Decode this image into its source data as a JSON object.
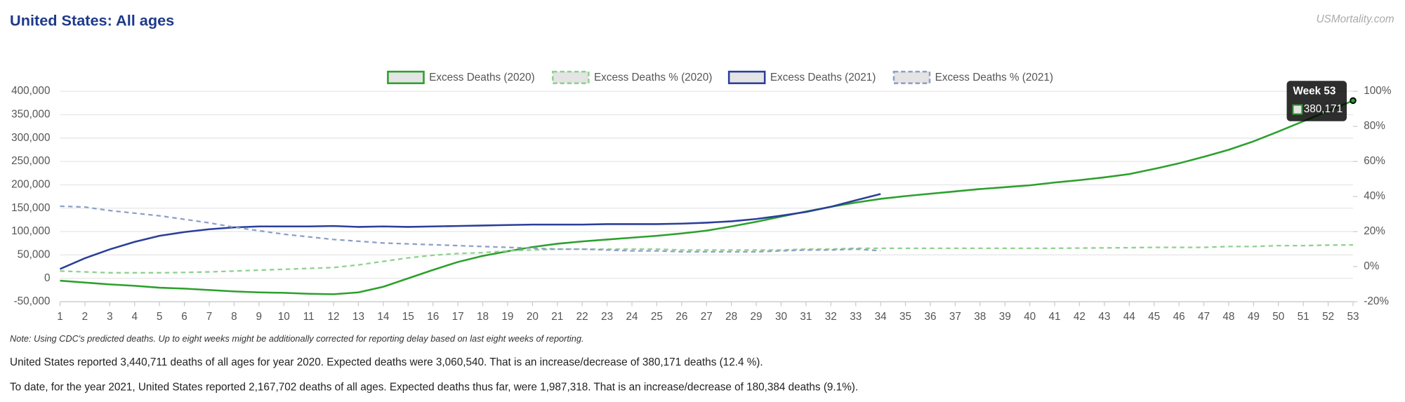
{
  "header": {
    "title": "United States: All ages",
    "brand": "USMortality.com"
  },
  "chart_data": {
    "type": "line",
    "categories": [
      "1",
      "2",
      "3",
      "4",
      "5",
      "6",
      "7",
      "8",
      "9",
      "10",
      "11",
      "12",
      "13",
      "14",
      "15",
      "16",
      "17",
      "18",
      "19",
      "20",
      "21",
      "22",
      "23",
      "24",
      "25",
      "26",
      "27",
      "28",
      "29",
      "30",
      "31",
      "32",
      "33",
      "34",
      "35",
      "36",
      "37",
      "38",
      "39",
      "40",
      "41",
      "42",
      "43",
      "44",
      "45",
      "46",
      "47",
      "48",
      "49",
      "50",
      "51",
      "52",
      "53"
    ],
    "series": [
      {
        "name": "Excess Deaths (2020)",
        "color": "#2ca02c",
        "line_style": "solid",
        "axis": "y",
        "values": [
          -5000,
          -9000,
          -13000,
          -16000,
          -20000,
          -22000,
          -25000,
          -28000,
          -30000,
          -31000,
          -33000,
          -34000,
          -30000,
          -18000,
          0,
          18000,
          35000,
          48000,
          58000,
          67000,
          74000,
          79000,
          83000,
          87000,
          91000,
          96000,
          102000,
          111000,
          121000,
          132000,
          143000,
          153000,
          162000,
          170000,
          176000,
          181000,
          186000,
          191000,
          195000,
          199000,
          205000,
          210000,
          216000,
          223000,
          234000,
          246000,
          260000,
          275000,
          293000,
          314000,
          336000,
          358000,
          380171
        ]
      },
      {
        "name": "Excess Deaths % (2020)",
        "color": "#8fd18f",
        "line_style": "dashed",
        "axis": "y2",
        "values": [
          -2.5,
          -3,
          -3.5,
          -3.5,
          -3.5,
          -3.3,
          -3,
          -2.5,
          -2,
          -1.5,
          -1,
          -0.5,
          1,
          3,
          5,
          6.5,
          7.5,
          8,
          9,
          9.5,
          10,
          10,
          10,
          10,
          10,
          9.5,
          9.5,
          9.5,
          9.5,
          9.5,
          10,
          10,
          10.5,
          10.5,
          10.5,
          10.5,
          10.5,
          10.5,
          10.5,
          10.5,
          10.5,
          10.6,
          10.7,
          10.8,
          11,
          11,
          11,
          11.5,
          11.5,
          12,
          12,
          12.3,
          12.4
        ]
      },
      {
        "name": "Excess Deaths (2021)",
        "color": "#2b3f99",
        "line_style": "solid",
        "axis": "y",
        "values": [
          20000,
          43000,
          62000,
          78000,
          91000,
          99000,
          105000,
          109000,
          111000,
          111000,
          111000,
          112000,
          110000,
          111000,
          110000,
          111000,
          112000,
          113000,
          114000,
          115000,
          115000,
          115000,
          116000,
          116000,
          116000,
          117000,
          119000,
          122000,
          127000,
          134000,
          142000,
          153000,
          167000,
          180384,
          null,
          null,
          null,
          null,
          null,
          null,
          null,
          null,
          null,
          null,
          null,
          null,
          null,
          null,
          null,
          null,
          null,
          null,
          null
        ]
      },
      {
        "name": "Excess Deaths % (2021)",
        "color": "#8ea0c8",
        "line_style": "dashed",
        "axis": "y2",
        "values": [
          34.5,
          34,
          32,
          30.5,
          29,
          27,
          25,
          22.5,
          20.5,
          18.5,
          17,
          15.5,
          14.5,
          13.5,
          13,
          12.5,
          12,
          11.5,
          11,
          10.5,
          10,
          10,
          9.5,
          9,
          9,
          8.5,
          8.5,
          8.5,
          8.5,
          9,
          9.5,
          9.5,
          10,
          9.1,
          null,
          null,
          null,
          null,
          null,
          null,
          null,
          null,
          null,
          null,
          null,
          null,
          null,
          null,
          null,
          null,
          null,
          null,
          null
        ]
      }
    ],
    "ylim": [
      -50000,
      400000
    ],
    "yticks": [
      {
        "value": -50000,
        "label": "-50,000"
      },
      0,
      {
        "value": 50000,
        "label": "50,000"
      },
      {
        "value": 100000,
        "label": "100,000"
      },
      {
        "value": 150000,
        "label": "150,000"
      },
      {
        "value": 200000,
        "label": "200,000"
      },
      {
        "value": 250000,
        "label": "250,000"
      },
      {
        "value": 300000,
        "label": "300,000"
      },
      {
        "value": 350000,
        "label": "350,000"
      },
      {
        "value": 400000,
        "label": "400,000"
      }
    ],
    "y2lim": [
      -20,
      100
    ],
    "y2ticks": [
      {
        "value": -20,
        "label": "-20%"
      },
      {
        "value": 0,
        "label": "0%"
      },
      {
        "value": 20,
        "label": "20%"
      },
      {
        "value": 40,
        "label": "40%"
      },
      {
        "value": 60,
        "label": "60%"
      },
      {
        "value": 80,
        "label": "80%"
      },
      {
        "value": 100,
        "label": "100%"
      }
    ],
    "grid": true,
    "legend": "top",
    "tooltip": {
      "title": "Week 53",
      "label": "380,171"
    }
  },
  "notes": {
    "note": "Note: Using CDC's predicted deaths. Up to eight weeks might be additionally corrected for reporting delay based on last eight weeks of reporting.",
    "summary_2020": "United States reported 3,440,711 deaths of all ages for year 2020. Expected deaths were 3,060,540. That is an increase/decrease of 380,171 deaths (12.4 %).",
    "summary_2021": "To date, for the year 2021, United States reported 2,167,702 deaths of all ages. Expected deaths thus far, were 1,987,318. That is an increase/decrease of 180,384 deaths (9.1%)."
  }
}
